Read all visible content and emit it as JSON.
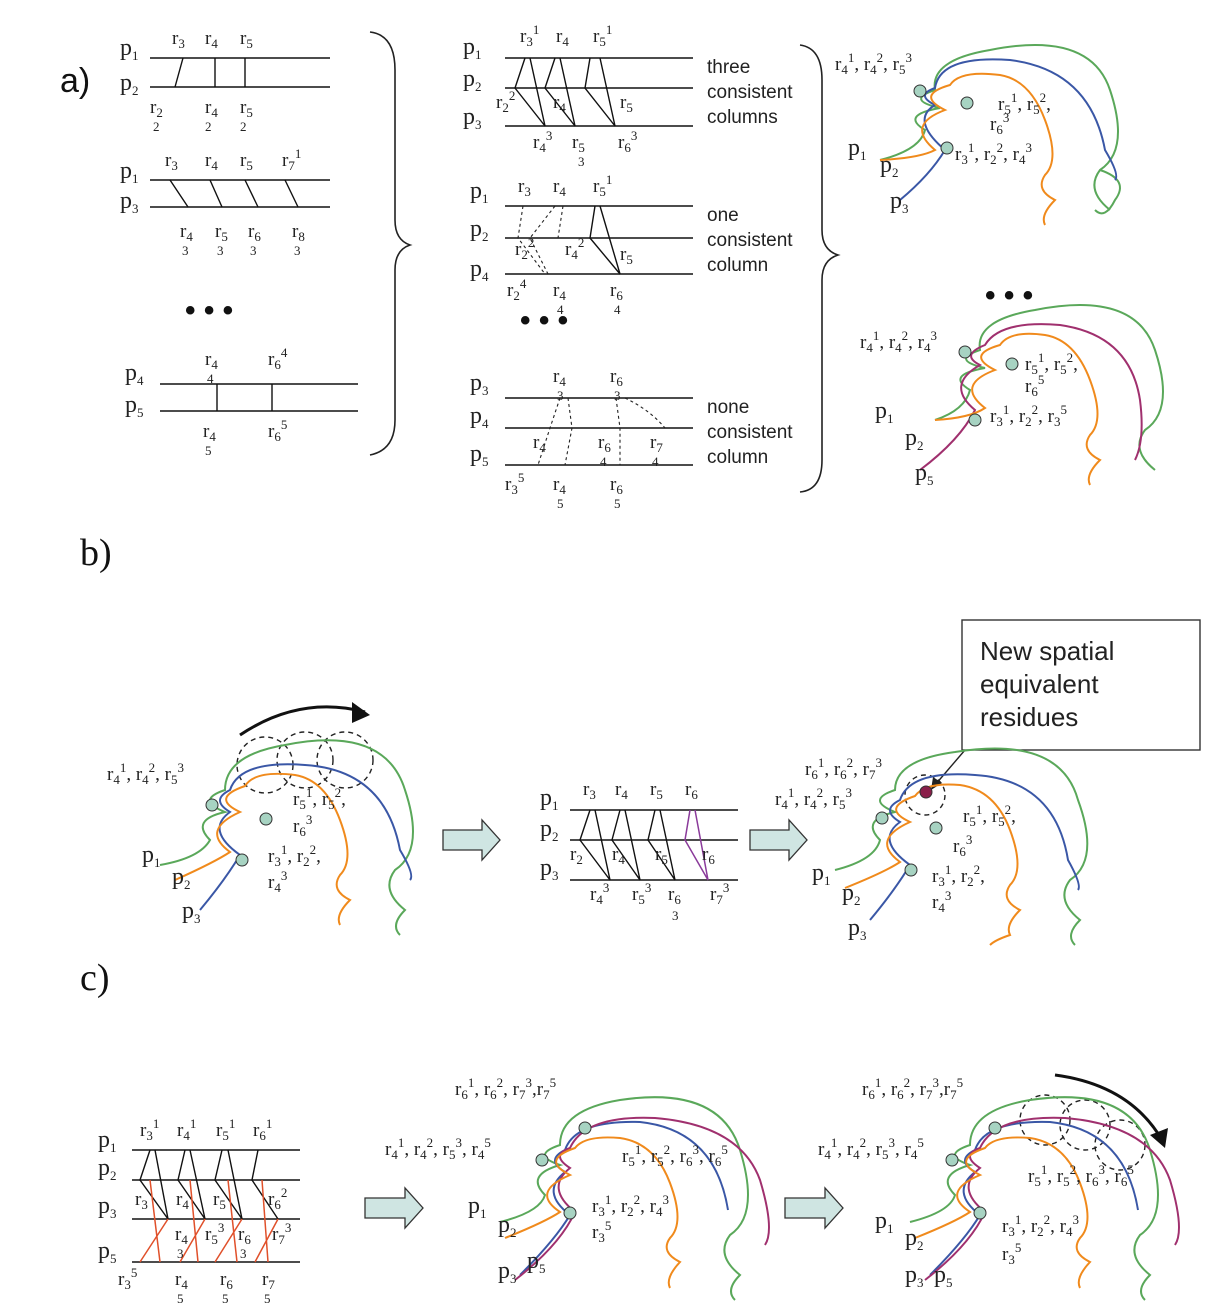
{
  "panels": {
    "a": "a)",
    "b": "b)",
    "c": "c)"
  },
  "column_notes": {
    "three": [
      "three",
      "consistent",
      "columns"
    ],
    "one": [
      "one",
      "consistent",
      "column"
    ],
    "none": [
      "none",
      "consistent",
      "column"
    ]
  },
  "ellipsis": "• • •",
  "callout": [
    "New spatial",
    "equivalent",
    "residues"
  ],
  "colors": {
    "green": "#5aa85a",
    "blue": "#3a57a6",
    "orange": "#f08a1c",
    "magenta": "#a0306e",
    "red": "#e0502a",
    "purple": "#8a3a9a",
    "sphere": "#a7d3c2",
    "new_residue": "#8a1f4a",
    "arrow_fill": "#cfe5e2"
  },
  "icons": [
    "right-block-arrow-icon",
    "curved-arrow-icon",
    "dashed-circle-icon",
    "residue-sphere-icon",
    "right-brace-icon"
  ]
}
